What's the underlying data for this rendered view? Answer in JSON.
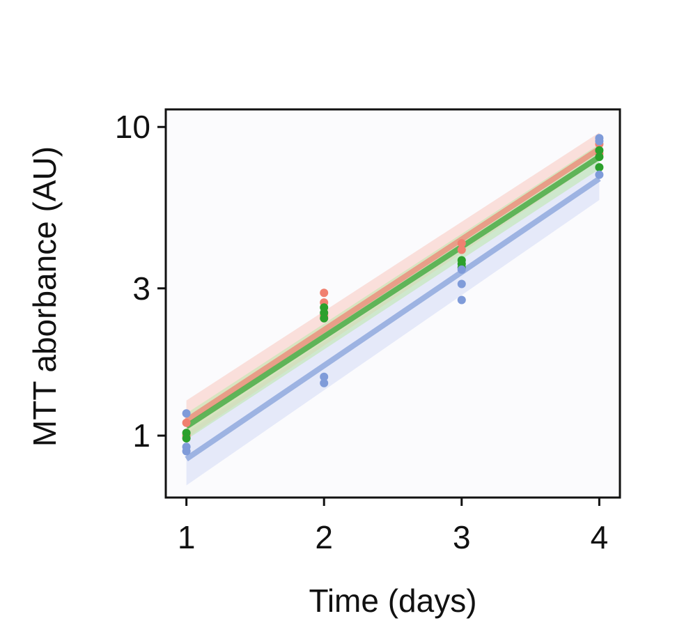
{
  "chart_data": {
    "type": "scatter",
    "title": "",
    "xlabel": "Time (days)",
    "ylabel": "MTT aborbance (AU)",
    "x_ticks": [
      1,
      2,
      3,
      4
    ],
    "x_tick_labels": [
      "1",
      "2",
      "3",
      "4"
    ],
    "y_scale": "log",
    "y_ticks": [
      1,
      3,
      10
    ],
    "y_tick_labels": [
      "1",
      "3",
      "10"
    ],
    "xlim": [
      0.85,
      4.15
    ],
    "ylim": [
      0.63,
      11.4
    ],
    "grid": false,
    "legend": "none",
    "series": [
      {
        "color": "#f08070",
        "band_color": "#f9c9bf",
        "points": [
          {
            "x": 1,
            "y": 1.1
          },
          {
            "x": 1,
            "y": 1.0
          },
          {
            "x": 2,
            "y": 2.9
          },
          {
            "x": 2,
            "y": 2.7
          },
          {
            "x": 2,
            "y": 2.45
          },
          {
            "x": 3,
            "y": 4.2
          },
          {
            "x": 3,
            "y": 4.0
          },
          {
            "x": 4,
            "y": 8.8
          },
          {
            "x": 4,
            "y": 8.2
          }
        ],
        "fit": [
          {
            "x": 1,
            "y": 1.12
          },
          {
            "x": 4,
            "y": 8.5
          }
        ],
        "band_lower": [
          {
            "x": 1,
            "y": 0.98
          },
          {
            "x": 4,
            "y": 7.8
          }
        ],
        "band_upper": [
          {
            "x": 1,
            "y": 1.3
          },
          {
            "x": 4,
            "y": 9.6
          }
        ]
      },
      {
        "color": "#2ca02c",
        "band_color": "#bce8a9",
        "points": [
          {
            "x": 1,
            "y": 1.02
          },
          {
            "x": 1,
            "y": 0.98
          },
          {
            "x": 2,
            "y": 2.6
          },
          {
            "x": 2,
            "y": 2.5
          },
          {
            "x": 2,
            "y": 2.4
          },
          {
            "x": 3,
            "y": 3.7
          },
          {
            "x": 3,
            "y": 3.6
          },
          {
            "x": 3,
            "y": 3.5
          },
          {
            "x": 4,
            "y": 8.4
          },
          {
            "x": 4,
            "y": 8.0
          },
          {
            "x": 4,
            "y": 7.4
          }
        ],
        "fit": [
          {
            "x": 1,
            "y": 1.07
          },
          {
            "x": 4,
            "y": 8.0
          }
        ],
        "band_lower": [
          {
            "x": 1,
            "y": 0.97
          },
          {
            "x": 4,
            "y": 7.3
          }
        ],
        "band_upper": [
          {
            "x": 1,
            "y": 1.18
          },
          {
            "x": 4,
            "y": 8.8
          }
        ]
      },
      {
        "color": "#7f9bd9",
        "band_color": "#d3dbf6",
        "points": [
          {
            "x": 1,
            "y": 1.18
          },
          {
            "x": 1,
            "y": 0.92
          },
          {
            "x": 1,
            "y": 0.89
          },
          {
            "x": 2,
            "y": 1.55
          },
          {
            "x": 2,
            "y": 1.48
          },
          {
            "x": 3,
            "y": 3.1
          },
          {
            "x": 3,
            "y": 2.75
          },
          {
            "x": 3,
            "y": 3.45
          },
          {
            "x": 4,
            "y": 9.2
          },
          {
            "x": 4,
            "y": 9.0
          },
          {
            "x": 4,
            "y": 7.0
          }
        ],
        "fit": [
          {
            "x": 1,
            "y": 0.84
          },
          {
            "x": 4,
            "y": 6.8
          }
        ],
        "band_lower": [
          {
            "x": 1,
            "y": 0.69
          },
          {
            "x": 4,
            "y": 5.8
          }
        ],
        "band_upper": [
          {
            "x": 1,
            "y": 1.02
          },
          {
            "x": 4,
            "y": 7.9
          }
        ]
      }
    ]
  }
}
